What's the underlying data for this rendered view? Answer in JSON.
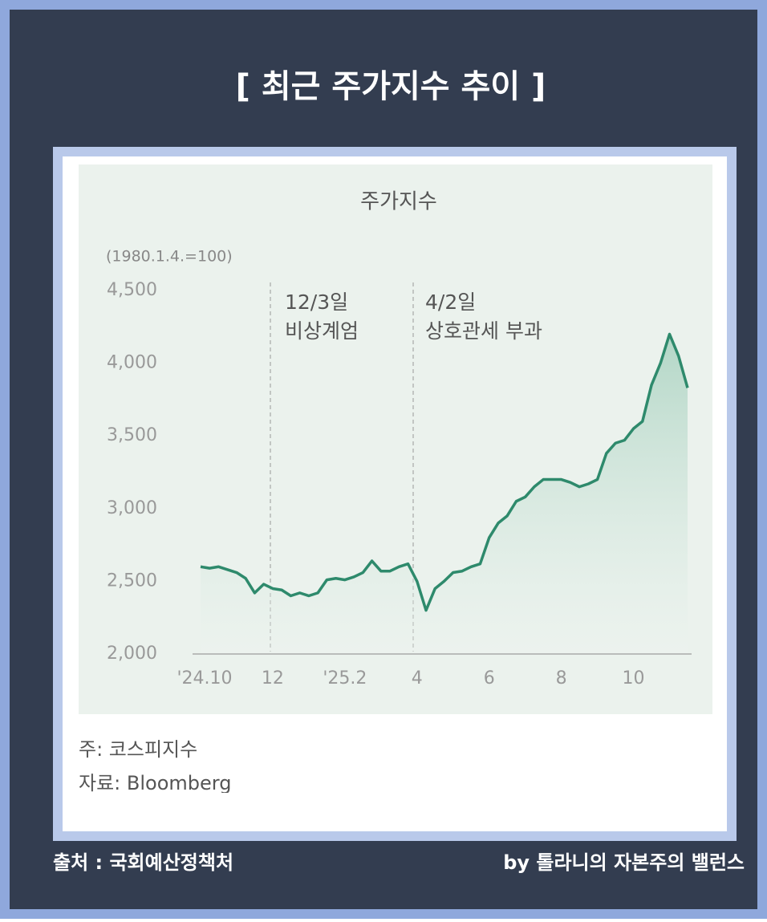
{
  "header": {
    "title": "[ 최근 주가지수 추이 ]"
  },
  "chart_data": {
    "type": "line",
    "title": "주가지수",
    "subtitle": "(1980.1.4.=100)",
    "categories": [
      "'24.10",
      null,
      null,
      null,
      null,
      null,
      null,
      null,
      "12",
      null,
      null,
      null,
      null,
      null,
      null,
      null,
      "'25.2",
      null,
      null,
      null,
      null,
      null,
      null,
      null,
      "4",
      null,
      null,
      null,
      null,
      null,
      null,
      null,
      "6",
      null,
      null,
      null,
      null,
      null,
      null,
      null,
      "8",
      null,
      null,
      null,
      null,
      null,
      null,
      null,
      "10",
      null,
      null,
      null,
      null,
      null,
      null
    ],
    "series": [
      {
        "color": "#2e8a6c",
        "values": [
          2600,
          2590,
          2600,
          2580,
          2560,
          2520,
          2420,
          2480,
          2450,
          2440,
          2400,
          2420,
          2400,
          2420,
          2510,
          2520,
          2510,
          2530,
          2560,
          2640,
          2570,
          2570,
          2600,
          2620,
          2500,
          2300,
          2450,
          2500,
          2560,
          2570,
          2600,
          2620,
          2800,
          2900,
          2950,
          3050,
          3080,
          3150,
          3200,
          3200,
          3200,
          3180,
          3150,
          3170,
          3200,
          3380,
          3450,
          3470,
          3550,
          3600,
          3850,
          4000,
          4200,
          4050,
          3830
        ]
      }
    ],
    "annotations": [
      [
        "12/3일",
        "비상계엄"
      ],
      [
        "4/2일",
        "상호관세 부과"
      ]
    ],
    "ylim": [
      2000,
      4500
    ],
    "yticks": [
      {
        "value": 2000,
        "label": "2,000"
      },
      {
        "value": 2500,
        "label": "2,500"
      },
      {
        "value": 3000,
        "label": "3,000"
      },
      {
        "value": 3500,
        "label": "3,500"
      },
      {
        "value": 4000,
        "label": "4,000"
      },
      {
        "value": 4500,
        "label": "4,500"
      }
    ]
  },
  "notes": [
    "주: 코스피지수",
    "자료: Bloomberg"
  ],
  "footer": {
    "source": "출처 : 국회예산정책처",
    "credit": "by 톨라니의 자본주의 밸런스"
  }
}
